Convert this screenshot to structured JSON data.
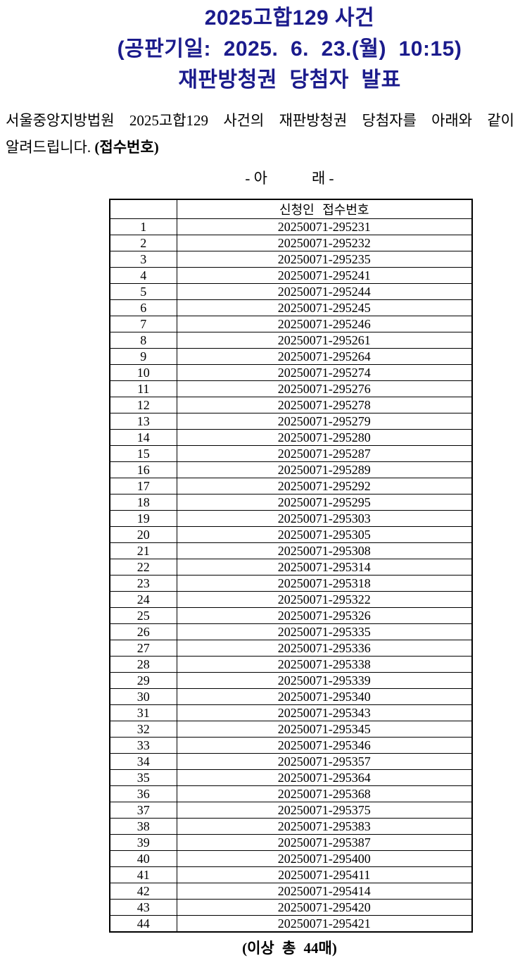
{
  "title": {
    "line1": "2025고합129 사건",
    "line2": "(공판기일:  2025.  6.  23.(월)  10:15)",
    "line3": "재판방청권  당첨자  발표",
    "color": "#1b1b8c"
  },
  "body": {
    "line1": "서울중앙지방법원 2025고합129 사건의 재판방청권 당첨자를 아래와 같이",
    "line2_normal": "알려드립니다. ",
    "line2_bold": "(접수번호)",
    "below_divider": "- 아            래 -"
  },
  "table": {
    "header": {
      "col_no": "",
      "col_receipt": "신청인 접수번호"
    },
    "rows": [
      {
        "no": "1",
        "receipt": "20250071-295231"
      },
      {
        "no": "2",
        "receipt": "20250071-295232"
      },
      {
        "no": "3",
        "receipt": "20250071-295235"
      },
      {
        "no": "4",
        "receipt": "20250071-295241"
      },
      {
        "no": "5",
        "receipt": "20250071-295244"
      },
      {
        "no": "6",
        "receipt": "20250071-295245"
      },
      {
        "no": "7",
        "receipt": "20250071-295246"
      },
      {
        "no": "8",
        "receipt": "20250071-295261"
      },
      {
        "no": "9",
        "receipt": "20250071-295264"
      },
      {
        "no": "10",
        "receipt": "20250071-295274"
      },
      {
        "no": "11",
        "receipt": "20250071-295276"
      },
      {
        "no": "12",
        "receipt": "20250071-295278"
      },
      {
        "no": "13",
        "receipt": "20250071-295279"
      },
      {
        "no": "14",
        "receipt": "20250071-295280"
      },
      {
        "no": "15",
        "receipt": "20250071-295287"
      },
      {
        "no": "16",
        "receipt": "20250071-295289"
      },
      {
        "no": "17",
        "receipt": "20250071-295292"
      },
      {
        "no": "18",
        "receipt": "20250071-295295"
      },
      {
        "no": "19",
        "receipt": "20250071-295303"
      },
      {
        "no": "20",
        "receipt": "20250071-295305"
      },
      {
        "no": "21",
        "receipt": "20250071-295308"
      },
      {
        "no": "22",
        "receipt": "20250071-295314"
      },
      {
        "no": "23",
        "receipt": "20250071-295318"
      },
      {
        "no": "24",
        "receipt": "20250071-295322"
      },
      {
        "no": "25",
        "receipt": "20250071-295326"
      },
      {
        "no": "26",
        "receipt": "20250071-295335"
      },
      {
        "no": "27",
        "receipt": "20250071-295336"
      },
      {
        "no": "28",
        "receipt": "20250071-295338"
      },
      {
        "no": "29",
        "receipt": "20250071-295339"
      },
      {
        "no": "30",
        "receipt": "20250071-295340"
      },
      {
        "no": "31",
        "receipt": "20250071-295343"
      },
      {
        "no": "32",
        "receipt": "20250071-295345"
      },
      {
        "no": "33",
        "receipt": "20250071-295346"
      },
      {
        "no": "34",
        "receipt": "20250071-295357"
      },
      {
        "no": "35",
        "receipt": "20250071-295364"
      },
      {
        "no": "36",
        "receipt": "20250071-295368"
      },
      {
        "no": "37",
        "receipt": "20250071-295375"
      },
      {
        "no": "38",
        "receipt": "20250071-295383"
      },
      {
        "no": "39",
        "receipt": "20250071-295387"
      },
      {
        "no": "40",
        "receipt": "20250071-295400"
      },
      {
        "no": "41",
        "receipt": "20250071-295411"
      },
      {
        "no": "42",
        "receipt": "20250071-295414"
      },
      {
        "no": "43",
        "receipt": "20250071-295420"
      },
      {
        "no": "44",
        "receipt": "20250071-295421"
      }
    ]
  },
  "footer": {
    "total": "(이상 총 44매)"
  }
}
